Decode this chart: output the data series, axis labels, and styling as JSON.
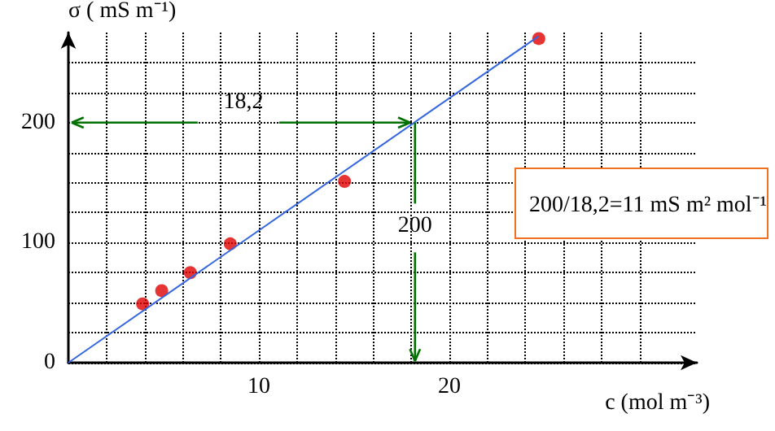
{
  "chart_data": {
    "type": "scatter",
    "xlabel": "c (mol m⁻³)",
    "ylabel": "σ ( mS m⁻¹)",
    "xlim": [
      0,
      33
    ],
    "xticks": [
      {
        "value": 2,
        "label": null
      },
      {
        "value": 4,
        "label": null
      },
      {
        "value": 6,
        "label": null
      },
      {
        "value": 8,
        "label": null
      },
      {
        "value": 10,
        "label": "10"
      },
      {
        "value": 12,
        "label": null
      },
      {
        "value": 14,
        "label": null
      },
      {
        "value": 16,
        "label": null
      },
      {
        "value": 18,
        "label": null
      },
      {
        "value": 20,
        "label": "20"
      },
      {
        "value": 22,
        "label": null
      },
      {
        "value": 24,
        "label": null
      },
      {
        "value": 26,
        "label": null
      },
      {
        "value": 28,
        "label": null
      },
      {
        "value": 30,
        "label": null
      }
    ],
    "ylim": [
      0,
      275
    ],
    "yticks": [
      {
        "value": 0,
        "label": "0"
      },
      {
        "value": 25,
        "label": null
      },
      {
        "value": 50,
        "label": null
      },
      {
        "value": 75,
        "label": null
      },
      {
        "value": 100,
        "label": "100"
      },
      {
        "value": 125,
        "label": null
      },
      {
        "value": 150,
        "label": null
      },
      {
        "value": 175,
        "label": null
      },
      {
        "value": 200,
        "label": "200"
      },
      {
        "value": 225,
        "label": null
      },
      {
        "value": 250,
        "label": null
      }
    ],
    "grid": true,
    "series": [
      {
        "color": "#e00000",
        "marker": "circle",
        "x": [
          3.9,
          4.9,
          6.4,
          8.5,
          14.5,
          24.7
        ],
        "values": [
          49,
          60,
          75,
          99,
          151,
          270
        ]
      },
      {
        "type": "line",
        "color": "#3366e0",
        "marker": "none",
        "x": [
          0,
          24.7
        ],
        "values": [
          0,
          272
        ]
      }
    ],
    "annotations": [
      {
        "text": "18,2",
        "x": 18.2,
        "y": 200
      },
      {
        "text": "200",
        "x": 18.2,
        "y": 200
      },
      "200/18,2=11 mS m² mol⁻¹"
    ]
  }
}
